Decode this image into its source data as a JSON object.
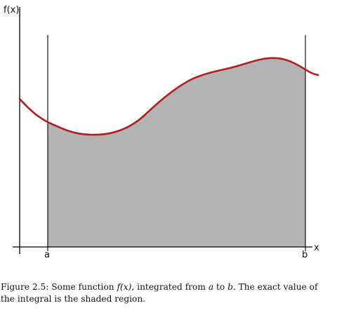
{
  "diagram": {
    "y_axis_label": "f(x)",
    "x_axis_label": "x",
    "lower_bound_label": "a",
    "upper_bound_label": "b",
    "colors": {
      "curve": "#b01e1e",
      "shaded_region": "#b3b3b3",
      "axes": "#000000"
    }
  },
  "caption": {
    "prefix": "Figure 2.5: Some function ",
    "function": "f(x)",
    "middle": ", integrated from ",
    "lower": "a",
    "to_word": " to ",
    "upper": "b",
    "suffix": ". The exact value of the integral is the shaded region."
  }
}
